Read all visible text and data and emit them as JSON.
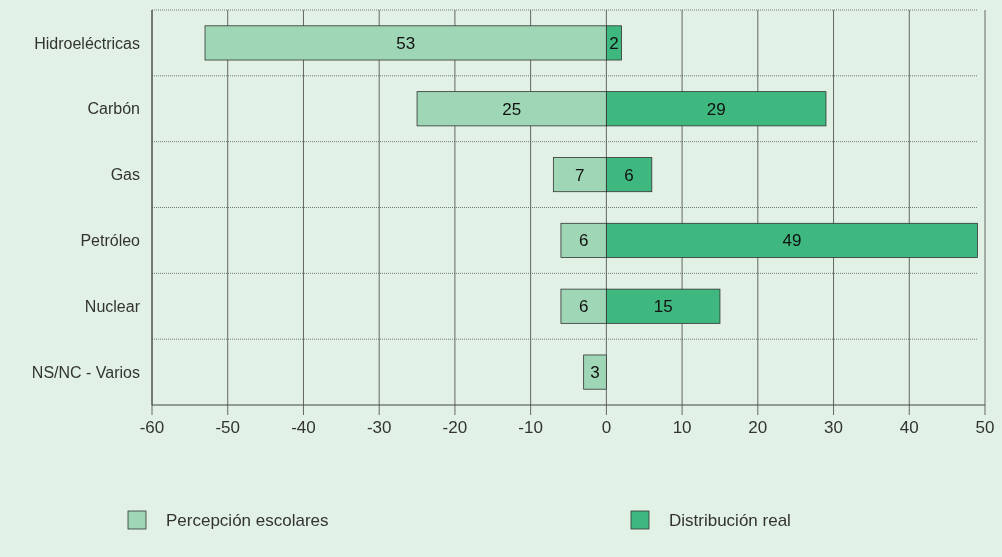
{
  "chart_data": {
    "type": "bar",
    "orientation": "horizontal",
    "categories": [
      "Hidroeléctricas",
      "Carbón",
      "Gas",
      "Petróleo",
      "Nuclear",
      "NS/NC - Varios"
    ],
    "series": [
      {
        "name": "Percepción escolares",
        "color": "#9fd6b6",
        "base": [
          -53,
          -25,
          -7,
          -6,
          -6,
          -3
        ],
        "values": [
          53,
          25,
          7,
          6,
          6,
          3
        ],
        "value_labels": [
          "53",
          "25",
          "7",
          "6",
          "6",
          "3"
        ]
      },
      {
        "name": "Distribución real",
        "color": "#3fb87f",
        "base": [
          0,
          0,
          0,
          0,
          0,
          null
        ],
        "values": [
          2,
          29,
          6,
          49,
          15,
          null
        ],
        "value_labels": [
          "2",
          "29",
          "6",
          "49",
          "15",
          null
        ]
      }
    ],
    "xlim": [
      -60,
      50
    ],
    "xticks": [
      -60,
      -50,
      -40,
      -30,
      -20,
      -10,
      0,
      10,
      20,
      30,
      40,
      50
    ],
    "grid": true,
    "legend": "bottom"
  }
}
